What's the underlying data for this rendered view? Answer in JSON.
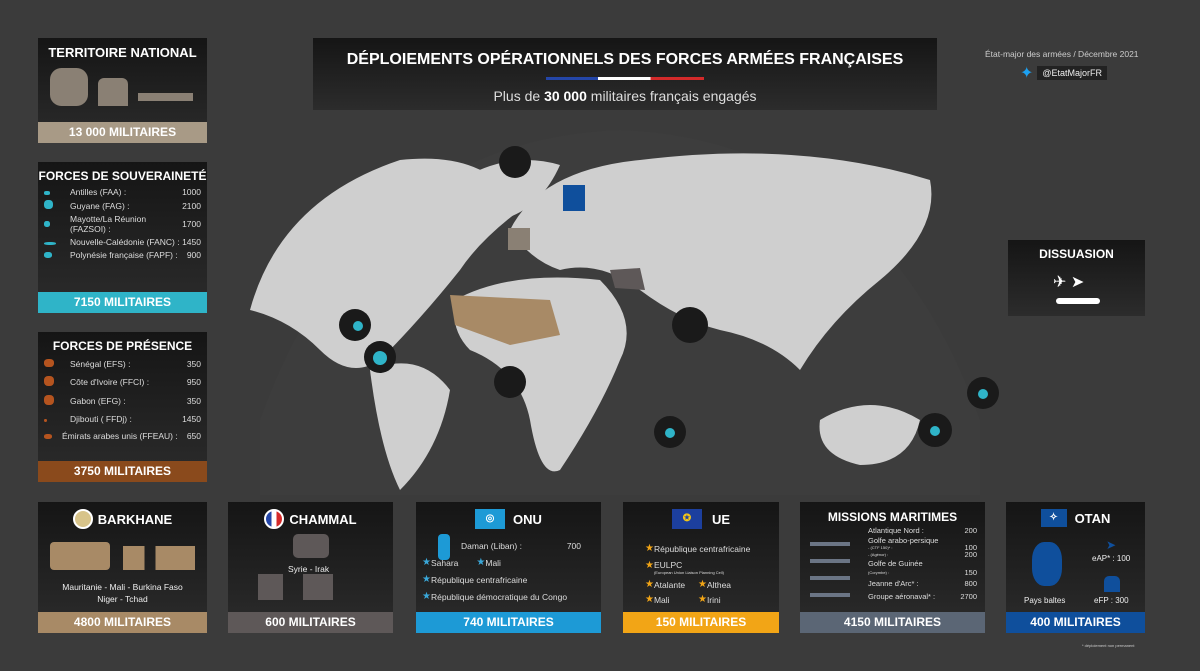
{
  "header": {
    "title": "DÉPLOIEMENTS OPÉRATIONNELS DES FORCES ARMÉES FRANÇAISES",
    "subtitle_pre": "Plus de ",
    "subtitle_bold": "30 000",
    "subtitle_post": " militaires français engagés",
    "source": "État-major des armées / Décembre 2021",
    "twitter": "@EtatMajorFR"
  },
  "colors": {
    "background": "#3b3b3b",
    "souverainete": "#2fb4c8",
    "presence": "#8a4a1c",
    "barkhane": "#a88a66",
    "chammal": "#5e5858",
    "onu": "#1d9ad6",
    "ue": "#f2a516",
    "maritime": "#5b6675",
    "otan": "#0f4f9c",
    "map_land": "#cfcfcf"
  },
  "territoire": {
    "title": "TERRITOIRE NATIONAL",
    "total": "13 000 MILITAIRES"
  },
  "souverainete": {
    "title": "FORCES DE SOUVERAINETÉ",
    "items": [
      {
        "label": "Antilles (FAA) :",
        "value": "1000"
      },
      {
        "label": "Guyane (FAG) :",
        "value": "2100"
      },
      {
        "label": "Mayotte/La Réunion (FAZSOI) :",
        "value": "1700"
      },
      {
        "label": "Nouvelle-Calédonie (FANC) :",
        "value": "1450"
      },
      {
        "label": "Polynésie française (FAPF) :",
        "value": "900"
      }
    ],
    "total": "7150 MILITAIRES"
  },
  "presence": {
    "title": "FORCES DE PRÉSENCE",
    "items": [
      {
        "label": "Sénégal (EFS) :",
        "value": "350"
      },
      {
        "label": "Côte d'Ivoire  (FFCI) :",
        "value": "950"
      },
      {
        "label": "Gabon (EFG) :",
        "value": "350"
      },
      {
        "label": "Djibouti ( FFDj) :",
        "value": "1450"
      },
      {
        "label": "Émirats arabes unis (FFEAU) :",
        "value": "650"
      }
    ],
    "total": "3750 MILITAIRES"
  },
  "dissuasion": {
    "title": "DISSUASION"
  },
  "barkhane": {
    "title": "BARKHANE",
    "countries": "Mauritanie - Mali - Burkina Faso",
    "countries2": "Niger - Tchad",
    "total": "4800 MILITAIRES"
  },
  "chammal": {
    "title": "CHAMMAL",
    "countries": "Syrie - Irak",
    "total": "600 MILITAIRES"
  },
  "onu": {
    "title": "ONU",
    "daman_label": "Daman (Liban) :",
    "daman_value": "700",
    "missions": [
      "Sahara",
      "Mali",
      "République centrafricaine",
      "République démocratique du Congo"
    ],
    "total": "740 MILITAIRES"
  },
  "ue": {
    "title": "UE",
    "missions": [
      "République centrafricaine",
      "EULPC",
      "Atalante",
      "Althea",
      "Mali",
      "Irini"
    ],
    "eulpc_note": "(European Union Liaison Planning Cell)",
    "total": "150 MILITAIRES"
  },
  "maritime": {
    "title": "MISSIONS MARITIMES",
    "items": [
      {
        "label": "Atlantique Nord :",
        "value": "200"
      },
      {
        "label": "Golfe arabo-persique",
        "sub1": "- (CTF 150)* :",
        "value1": "100",
        "sub2": "- (Agénor) :",
        "value2": "200"
      },
      {
        "label": "Golfe de Guinée",
        "sub1": "(Corymbe) :",
        "value1": "150"
      },
      {
        "label": "Jeanne d'Arc* :",
        "value": "800"
      },
      {
        "label": "Groupe aéronaval* :",
        "value": "2700"
      }
    ],
    "total": "4150 MILITAIRES"
  },
  "otan": {
    "title": "OTAN",
    "eap": "eAP* : 100",
    "efp": "eFP : 300",
    "region": "Pays baltes",
    "total": "400 MILITAIRES"
  },
  "footnote": "* déploiement non permanent"
}
